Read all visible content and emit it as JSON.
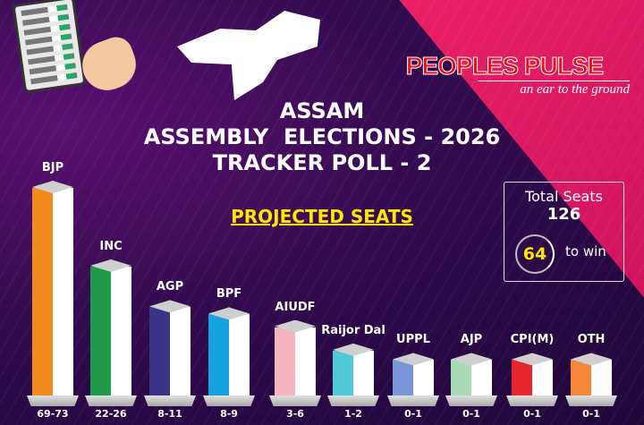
{
  "header": {
    "brand": "PEOPLES PULSE",
    "tagline": "an ear to the ground",
    "title_lines": [
      "ASSAM",
      "ASSEMBLY  ELECTIONS - 2026",
      "TRACKER POLL - 2"
    ],
    "subtitle": "PROJECTED SEATS"
  },
  "info": {
    "total_label": "Total Seats",
    "total": "126",
    "majority": "64",
    "majority_label": "to win"
  },
  "chart_data": {
    "type": "bar",
    "title": "PROJECTED SEATS",
    "xlabel": "",
    "ylabel": "",
    "categories": [
      "BJP",
      "INC",
      "AGP",
      "BPF",
      "AIUDF",
      "Raijor Dal",
      "UPPL",
      "AJP",
      "CPI(M)",
      "OTH"
    ],
    "labels": [
      "69-73",
      "22-26",
      "8-11",
      "8-9",
      "3-6",
      "1-2",
      "0-1",
      "0-1",
      "0-1",
      "0-1"
    ],
    "ranges": [
      [
        69,
        73
      ],
      [
        22,
        26
      ],
      [
        8,
        11
      ],
      [
        8,
        9
      ],
      [
        3,
        6
      ],
      [
        1,
        2
      ],
      [
        0,
        1
      ],
      [
        0,
        1
      ],
      [
        0,
        1
      ],
      [
        0,
        1
      ]
    ],
    "colors": [
      "#f28a1e",
      "#1e9a4a",
      "#3a3487",
      "#15a3e0",
      "#f6b5c0",
      "#4fc9d6",
      "#7b96d8",
      "#a9dcb6",
      "#e5262a",
      "#f5863a"
    ]
  }
}
